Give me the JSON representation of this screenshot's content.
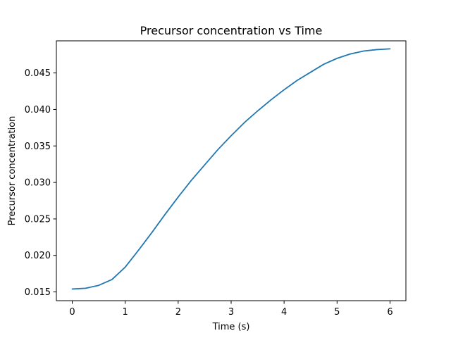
{
  "chart_data": {
    "type": "line",
    "title": "Precursor concentration vs Time",
    "xlabel": "Time (s)",
    "ylabel": "Precursor concentration",
    "xlim": [
      -0.3,
      6.3
    ],
    "ylim": [
      0.0138,
      0.0494
    ],
    "xticks": [
      0,
      1,
      2,
      3,
      4,
      5,
      6
    ],
    "xtick_labels": [
      "0",
      "1",
      "2",
      "3",
      "4",
      "5",
      "6"
    ],
    "yticks": [
      0.015,
      0.02,
      0.025,
      0.03,
      0.035,
      0.04,
      0.045
    ],
    "ytick_labels": [
      "0.015",
      "0.020",
      "0.025",
      "0.030",
      "0.035",
      "0.040",
      "0.045"
    ],
    "grid": false,
    "series": [
      {
        "color": "#1f77b4",
        "x": [
          0,
          0.25,
          0.5,
          0.75,
          1.0,
          1.25,
          1.5,
          1.75,
          2.0,
          2.25,
          2.5,
          2.75,
          3.0,
          3.25,
          3.5,
          3.75,
          4.0,
          4.25,
          4.5,
          4.75,
          5.0,
          5.25,
          5.5,
          5.75,
          6.0
        ],
        "y": [
          0.0154,
          0.0155,
          0.0159,
          0.0167,
          0.0184,
          0.0207,
          0.0231,
          0.0256,
          0.028,
          0.0303,
          0.0324,
          0.0345,
          0.0364,
          0.0382,
          0.0398,
          0.0413,
          0.0427,
          0.044,
          0.0451,
          0.0462,
          0.047,
          0.0476,
          0.048,
          0.0482,
          0.0483
        ]
      }
    ]
  }
}
